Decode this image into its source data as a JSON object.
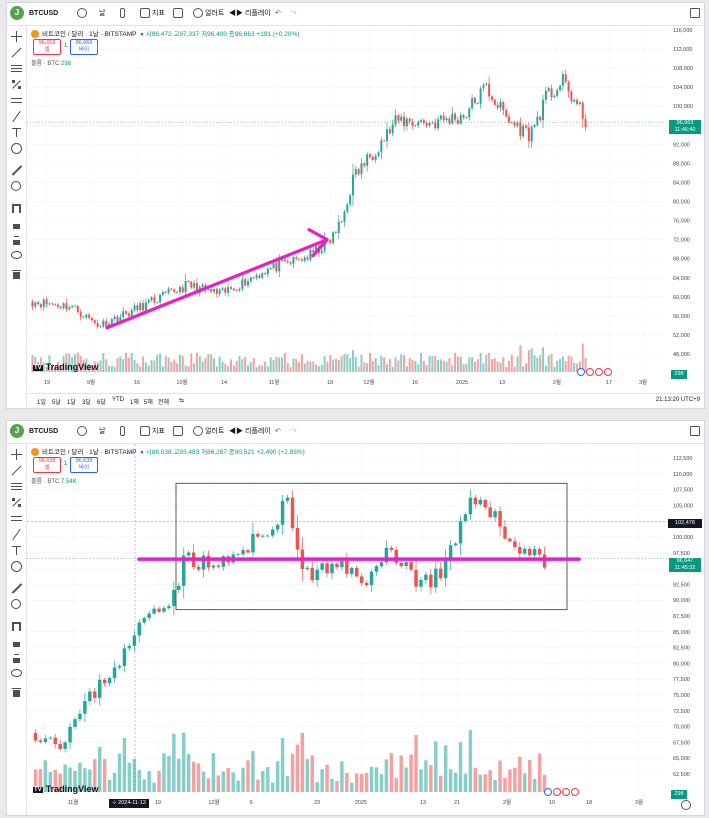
{
  "top": {
    "symbol": "BTCUSD",
    "timeframe": "날",
    "indicators": "지표",
    "alert": "얼러트",
    "replay": "리플레이",
    "avatar": "J"
  },
  "panel1": {
    "legend": {
      "name": "비트코인 / 달러 · 1날 · BITSTAMP",
      "ohlc": "시96,472 고97,337 저96,400 종96,663 +191 (+0.20%)"
    },
    "sell": {
      "price": "96,658",
      "label": "셀"
    },
    "buy": {
      "price": "96,669",
      "label": "바이"
    },
    "volume": {
      "label": "볼륨 · BTC",
      "value": "298"
    },
    "price_tag": {
      "price": "96,663",
      "time": "11:46:40"
    },
    "volume_tag": "298",
    "y_labels": [
      "116,000",
      "112,000",
      "108,000",
      "104,000",
      "100,000",
      "96,000",
      "92,000",
      "88,000",
      "84,000",
      "80,000",
      "76,000",
      "72,000",
      "68,000",
      "64,000",
      "60,000",
      "56,000",
      "52,000",
      "48,000"
    ],
    "x_labels": [
      "19",
      "9월",
      "16",
      "10월",
      "14",
      "11월",
      "18",
      "12월",
      "16",
      "2025",
      "13",
      "2월",
      "17",
      "3월"
    ],
    "ranges": [
      "1일",
      "5날",
      "1달",
      "3달",
      "6달",
      "YTD",
      "1해",
      "5해",
      "전체"
    ],
    "clock": "21:13:20 UTC+9",
    "arrow": {
      "from": {
        "date": "2024-09-08",
        "price": 53500
      },
      "to": {
        "date": "2024-11-12",
        "price": 72000
      }
    }
  },
  "panel2": {
    "legend": {
      "name": "비트코인 / 달러 · 1날 · BITSTAMP",
      "ohlc": "시88,038 고93,483 저86,267 종90,521 +2,490 (+2.83%)"
    },
    "sell": {
      "price": "96,638",
      "label": "셀"
    },
    "buy": {
      "price": "96,639",
      "label": "바이"
    },
    "volume": {
      "label": "볼륨 · BTC",
      "value": "7.54K"
    },
    "price_tag": {
      "price": "96,647",
      "time": "11:45:32"
    },
    "crosshair_tag": "102,478",
    "date_tag": "2024-11-13",
    "volume_tag": "298",
    "y_labels": [
      "112,500",
      "110,000",
      "107,500",
      "105,000",
      "102,500",
      "100,000",
      "97,500",
      "95,000",
      "92,500",
      "90,000",
      "87,500",
      "85,000",
      "82,500",
      "80,000",
      "77,500",
      "75,000",
      "72,500",
      "70,000",
      "67,500",
      "65,000",
      "62,500"
    ],
    "x_labels": [
      "11월",
      "19",
      "12월",
      "9",
      "23",
      "2025",
      "13",
      "21",
      "2월",
      "10",
      "18",
      "3월"
    ],
    "support_level": 96500,
    "range_box": {
      "top": 108500,
      "bottom": 88500
    }
  },
  "colors": {
    "up": "#26a69a",
    "down": "#ef5350",
    "magenta": "#e91ec8",
    "accent": "#2962ff"
  }
}
